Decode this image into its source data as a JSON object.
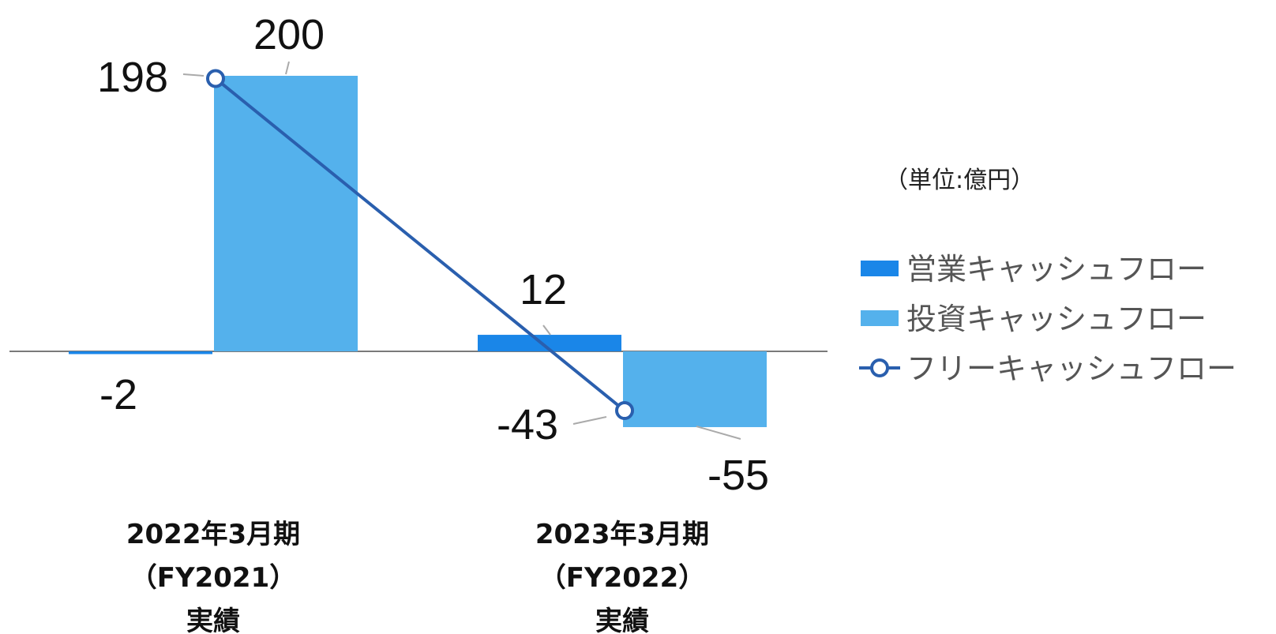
{
  "chart_data": {
    "type": "bar",
    "unit_label": "（単位:億円）",
    "categories": [
      {
        "line1": "2022年3月期",
        "line2": "（FY2021）",
        "line3": "実績"
      },
      {
        "line1": "2023年3月期",
        "line2": "（FY2022）",
        "line3": "実績"
      }
    ],
    "series": [
      {
        "name": "営業キャッシュフロー",
        "kind": "bar",
        "color": "#1a86e8",
        "values": [
          -2,
          12
        ],
        "labels": [
          "-2",
          "12"
        ]
      },
      {
        "name": "投資キャッシュフロー",
        "kind": "bar",
        "color": "#54b1ec",
        "values": [
          200,
          -55
        ],
        "labels": [
          "200",
          "-55"
        ]
      },
      {
        "name": "フリーキャッシュフロー",
        "kind": "line",
        "color": "#2a5fae",
        "values": [
          198,
          -43
        ],
        "labels": [
          "198",
          "-43"
        ]
      }
    ],
    "ylim": [
      -75,
      260
    ],
    "grid": false,
    "legend": "right"
  }
}
